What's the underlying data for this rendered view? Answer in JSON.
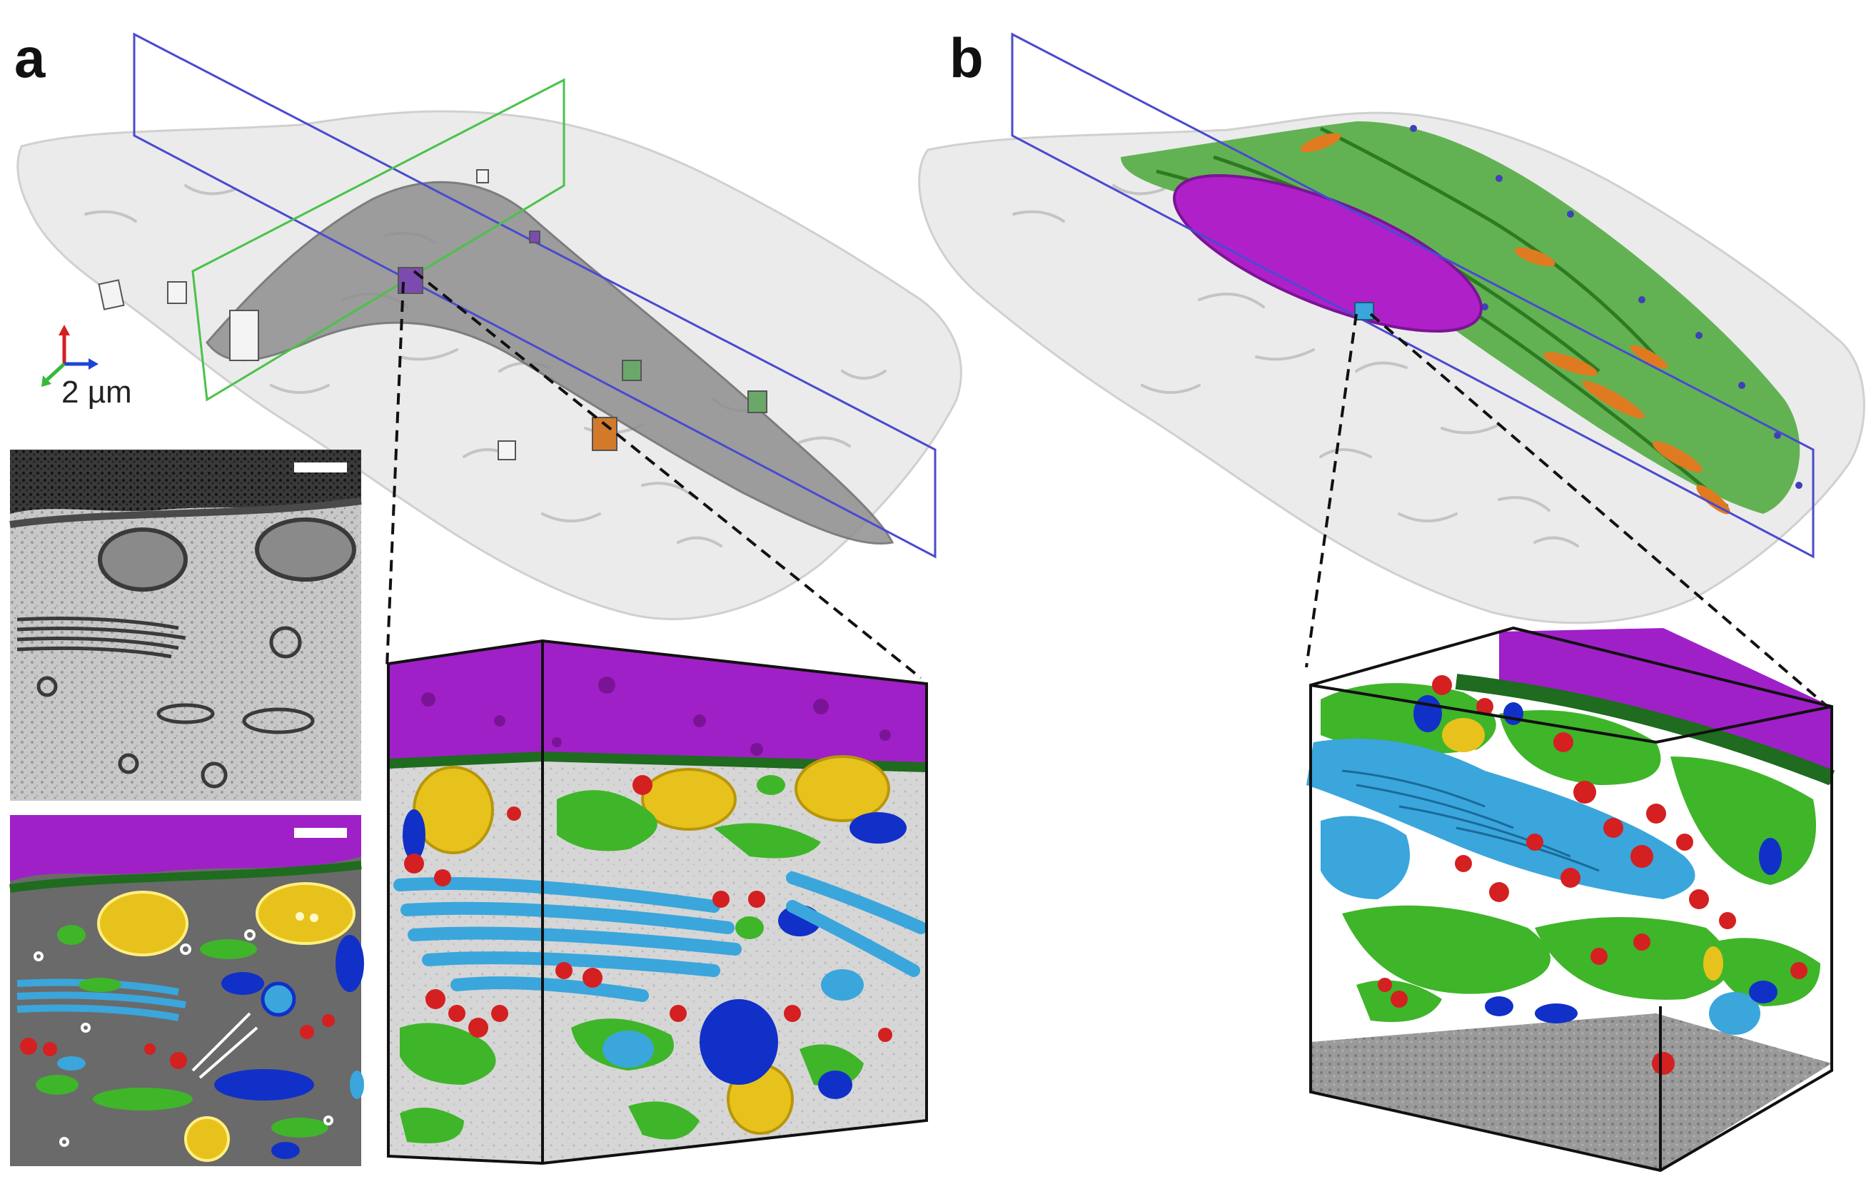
{
  "figure": {
    "panels": [
      {
        "label": "a",
        "scale_bar_text": "2 µm"
      },
      {
        "label": "b"
      }
    ]
  },
  "colors": {
    "nucleus": "#a020c8",
    "nuclear_envelope": "#1f6b1f",
    "er": "#3fb52a",
    "golgi": "#3aa6dc",
    "mitochondria": "#e8c21c",
    "vesicles": "#d42020",
    "endosomes": "#1030c8",
    "cell_membrane": "#e4e4e4",
    "lipid_droplets": "#e07a20",
    "em_background": "#6a6a6a"
  }
}
